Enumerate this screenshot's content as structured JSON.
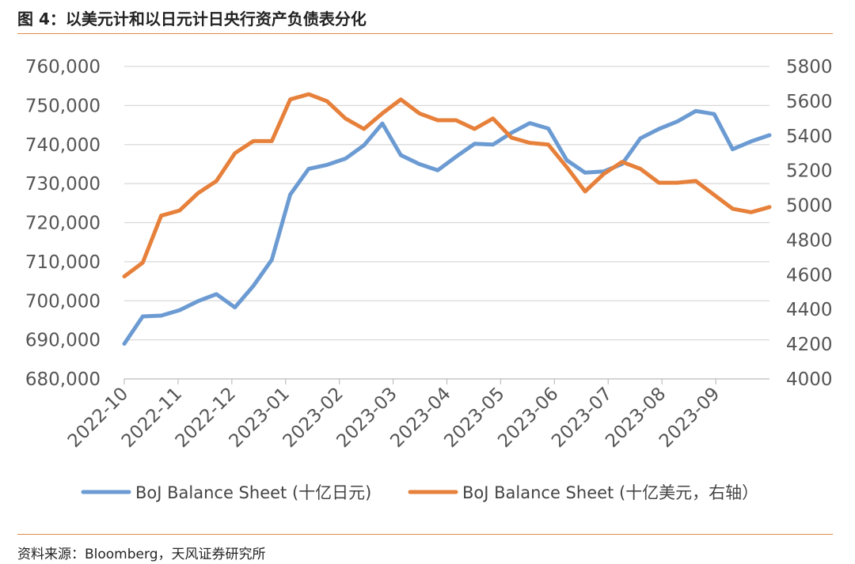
{
  "header": {
    "title": "图 4：以美元计和以日元计日央行资产负债表分化"
  },
  "footer": {
    "source": "资料来源：Bloomberg，天风证券研究所"
  },
  "colors": {
    "series_jpy": "#6b9bd2",
    "series_usd": "#e6803a",
    "grid": "#d9d9d9",
    "rule": "#e38b4a"
  },
  "chart_data": {
    "type": "line",
    "title": "",
    "x_labels": [
      "2022-10",
      "2022-11",
      "2022-12",
      "2023-01",
      "2023-02",
      "2023-03",
      "2023-04",
      "2023-05",
      "2023-06",
      "2023-07",
      "2023-08",
      "2023-09"
    ],
    "y_left": {
      "ylim": [
        680000,
        760000
      ],
      "ticks": [
        "680,000",
        "690,000",
        "700,000",
        "710,000",
        "720,000",
        "730,000",
        "740,000",
        "750,000",
        "760,000"
      ]
    },
    "y_right": {
      "ylim": [
        4000,
        5800
      ],
      "ticks": [
        "4000",
        "4200",
        "4400",
        "4600",
        "4800",
        "5000",
        "5200",
        "5400",
        "5600",
        "5800"
      ]
    },
    "grid": true,
    "legend_position": "bottom",
    "series": [
      {
        "name": "BoJ Balance Sheet (十亿日元)",
        "axis": "left",
        "values": [
          689000,
          696000,
          696200,
          697600,
          699900,
          701700,
          698300,
          703800,
          710500,
          727200,
          733800,
          734800,
          736400,
          739800,
          745400,
          737300,
          735000,
          733400,
          736900,
          740200,
          740000,
          743000,
          745500,
          744100,
          736000,
          732800,
          733100,
          735000,
          741600,
          744000,
          745900,
          748600,
          747800,
          738800,
          740800,
          742400
        ]
      },
      {
        "name": "BoJ Balance Sheet (十亿美元，右轴）",
        "axis": "right",
        "values": [
          4590,
          4670,
          4940,
          4970,
          5070,
          5140,
          5300,
          5370,
          5370,
          5610,
          5640,
          5600,
          5500,
          5440,
          5530,
          5610,
          5530,
          5490,
          5490,
          5440,
          5500,
          5390,
          5360,
          5350,
          5220,
          5080,
          5180,
          5250,
          5210,
          5130,
          5130,
          5140,
          5060,
          4980,
          4960,
          4990
        ]
      }
    ]
  }
}
